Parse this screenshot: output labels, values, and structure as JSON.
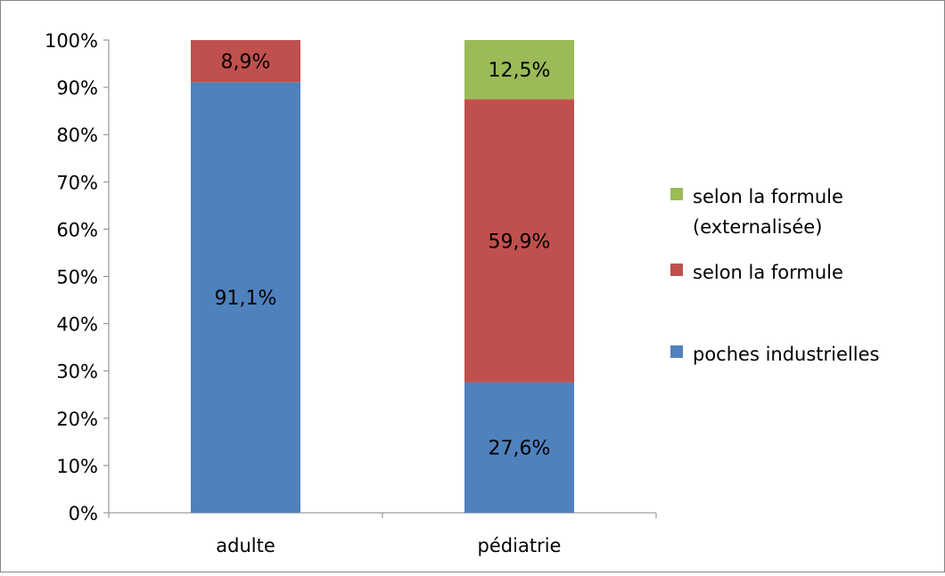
{
  "chart_data": {
    "type": "bar",
    "stacked": true,
    "stack_mode": "percent",
    "categories": [
      "adulte",
      "pédiatrie"
    ],
    "series": [
      {
        "name": "poches industrielles",
        "values": [
          91.1,
          27.6
        ],
        "labels": [
          "91,1%",
          "27,6%"
        ],
        "color": "#4F81BD"
      },
      {
        "name": "selon la formule",
        "values": [
          8.9,
          59.9
        ],
        "labels": [
          "8,9%",
          "59,9%"
        ],
        "color": "#C0504D"
      },
      {
        "name": "selon la formule (externalisée)",
        "legend_lines": [
          "selon la formule",
          "(externalisée)"
        ],
        "values": [
          0,
          12.5
        ],
        "labels": [
          "",
          "12,5%"
        ],
        "color": "#9BBB59"
      }
    ],
    "title": "",
    "xlabel": "",
    "ylabel": "",
    "ylim": [
      0,
      100
    ],
    "yticks": [
      0,
      10,
      20,
      30,
      40,
      50,
      60,
      70,
      80,
      90,
      100
    ],
    "ytick_labels": [
      "0%",
      "10%",
      "20%",
      "30%",
      "40%",
      "50%",
      "60%",
      "70%",
      "80%",
      "90%",
      "100%"
    ],
    "grid": false,
    "legend_position": "right",
    "legend_order": [
      2,
      1,
      0
    ]
  }
}
